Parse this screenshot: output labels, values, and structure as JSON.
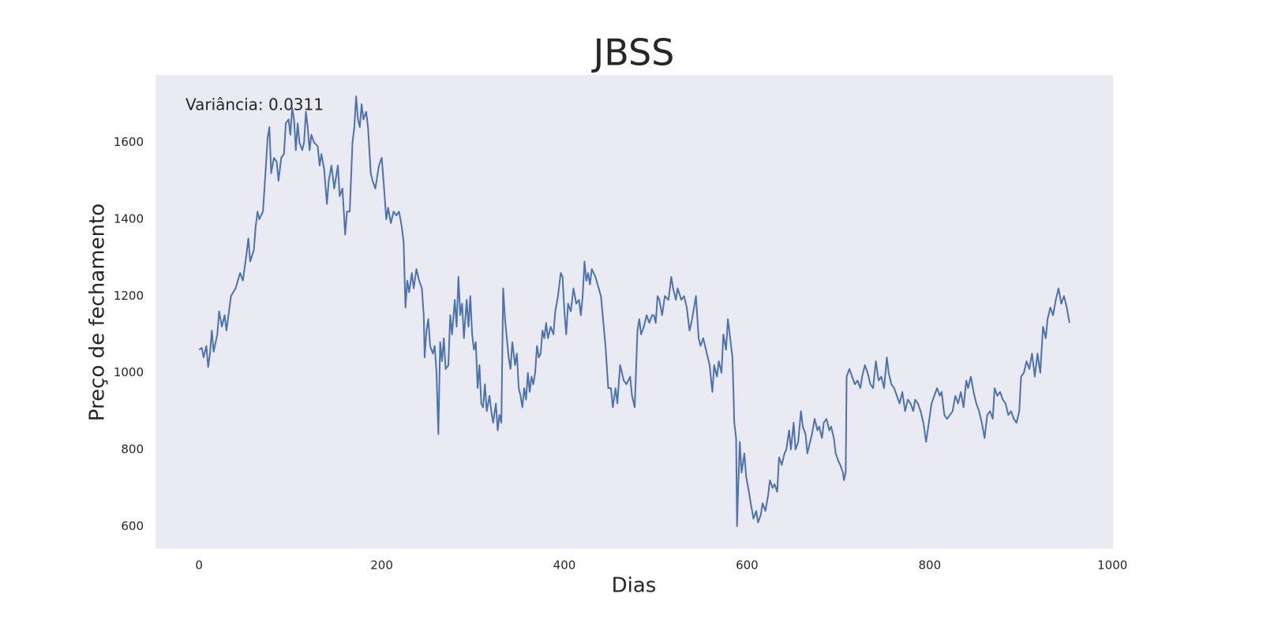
{
  "chart_data": {
    "type": "line",
    "title": "JBSS",
    "x_label": "Dias",
    "y_label": "Preço de fechamento",
    "annotation": "Variância: 0.0311",
    "color": "#4c72b0",
    "grid": false,
    "background": "#eaeaf2",
    "xlim": [
      -47.65,
      1000.65
    ],
    "ylim": [
      541,
      1776
    ],
    "xticks": [
      0,
      200,
      400,
      600,
      800,
      1000
    ],
    "yticks": [
      600,
      800,
      1000,
      1200,
      1400,
      1600
    ],
    "x": [
      0,
      3,
      5,
      8,
      10,
      12,
      14,
      16,
      20,
      22,
      25,
      28,
      30,
      35,
      40,
      45,
      48,
      52,
      54,
      56,
      60,
      62,
      64,
      66,
      70,
      73,
      75,
      77,
      79,
      82,
      85,
      87,
      90,
      93,
      95,
      98,
      100,
      102,
      104,
      106,
      108,
      110,
      113,
      115,
      117,
      119,
      121,
      123,
      126,
      130,
      132,
      134,
      137,
      140,
      142,
      145,
      148,
      150,
      152,
      154,
      157,
      160,
      162,
      165,
      168,
      170,
      172,
      174,
      176,
      178,
      180,
      183,
      185,
      188,
      190,
      193,
      195,
      197,
      200,
      202,
      205,
      207,
      210,
      213,
      216,
      219,
      222,
      224,
      226,
      228,
      230,
      233,
      235,
      238,
      241,
      244,
      246,
      247,
      249,
      251,
      253,
      256,
      258,
      260,
      262,
      264,
      266,
      268,
      270,
      273,
      275,
      277,
      280,
      282,
      284,
      286,
      288,
      290,
      293,
      295,
      297,
      299,
      301,
      303,
      305,
      307,
      309,
      311,
      313,
      315,
      318,
      320,
      322,
      325,
      327,
      329,
      331,
      333,
      335,
      337,
      339,
      341,
      343,
      346,
      348,
      350,
      352,
      354,
      356,
      358,
      360,
      362,
      364,
      366,
      368,
      370,
      372,
      374,
      376,
      378,
      380,
      382,
      385,
      388,
      390,
      393,
      396,
      398,
      400,
      402,
      404,
      407,
      410,
      413,
      416,
      418,
      420,
      422,
      424,
      426,
      428,
      430,
      434,
      440,
      445,
      448,
      451,
      453,
      456,
      458,
      461,
      465,
      468,
      472,
      474,
      477,
      480,
      482,
      484,
      487,
      490,
      493,
      496,
      498,
      500,
      502,
      504,
      507,
      510,
      514,
      517,
      519,
      522,
      524,
      528,
      531,
      534,
      537,
      539,
      542,
      544,
      547,
      549,
      552,
      555,
      559,
      562,
      564,
      567,
      569,
      572,
      574,
      577,
      579,
      582,
      584,
      585,
      586,
      588,
      589,
      590,
      592,
      594,
      597,
      599,
      602,
      604,
      607,
      610,
      612,
      615,
      617,
      620,
      623,
      625,
      628,
      630,
      633,
      635,
      638,
      641,
      643,
      646,
      648,
      651,
      653,
      656,
      659,
      661,
      664,
      666,
      669,
      671,
      674,
      677,
      679,
      682,
      684,
      687,
      690,
      692,
      695,
      697,
      700,
      702,
      705,
      706,
      708,
      709,
      712,
      715,
      718,
      721,
      724,
      726,
      729,
      732,
      735,
      738,
      741,
      744,
      747,
      750,
      753,
      755,
      758,
      761,
      764,
      767,
      770,
      773,
      776,
      779,
      782,
      784,
      787,
      790,
      793,
      796,
      799,
      802,
      805,
      808,
      811,
      813,
      816,
      819,
      822,
      825,
      828,
      831,
      834,
      837,
      840,
      842,
      845,
      848,
      851,
      854,
      857,
      860,
      863,
      866,
      869,
      871,
      874,
      877,
      880,
      883,
      886,
      889,
      892,
      895,
      898,
      900,
      903,
      906,
      909,
      912,
      915,
      918,
      921,
      924,
      927,
      929,
      932,
      935,
      938,
      941,
      944,
      947,
      950,
      953
    ],
    "values": [
      1060,
      1065,
      1040,
      1070,
      1015,
      1050,
      1110,
      1055,
      1100,
      1160,
      1120,
      1150,
      1110,
      1200,
      1220,
      1260,
      1240,
      1310,
      1350,
      1290,
      1320,
      1380,
      1420,
      1400,
      1420,
      1530,
      1610,
      1640,
      1520,
      1560,
      1550,
      1500,
      1560,
      1570,
      1650,
      1660,
      1620,
      1690,
      1660,
      1580,
      1650,
      1600,
      1580,
      1600,
      1680,
      1640,
      1580,
      1620,
      1600,
      1590,
      1540,
      1570,
      1530,
      1440,
      1500,
      1540,
      1480,
      1510,
      1540,
      1460,
      1480,
      1360,
      1420,
      1420,
      1600,
      1640,
      1720,
      1660,
      1640,
      1700,
      1660,
      1680,
      1640,
      1520,
      1500,
      1480,
      1510,
      1540,
      1560,
      1500,
      1400,
      1430,
      1390,
      1420,
      1410,
      1420,
      1380,
      1340,
      1170,
      1240,
      1210,
      1260,
      1220,
      1270,
      1240,
      1220,
      1150,
      1040,
      1110,
      1140,
      1070,
      1050,
      1070,
      1000,
      840,
      1080,
      1030,
      1090,
      1010,
      1020,
      1150,
      1100,
      1190,
      1120,
      1250,
      1150,
      1180,
      1090,
      1190,
      1120,
      1200,
      1100,
      1060,
      1080,
      960,
      1020,
      920,
      910,
      970,
      900,
      940,
      900,
      870,
      920,
      850,
      890,
      870,
      1220,
      1140,
      1090,
      1040,
      1010,
      1080,
      1020,
      1050,
      960,
      940,
      910,
      960,
      930,
      1000,
      950,
      990,
      970,
      1000,
      1070,
      1040,
      1050,
      1110,
      1090,
      1130,
      1090,
      1120,
      1100,
      1160,
      1200,
      1260,
      1250,
      1160,
      1100,
      1180,
      1160,
      1220,
      1180,
      1190,
      1150,
      1200,
      1290,
      1240,
      1260,
      1230,
      1270,
      1250,
      1200,
      1070,
      960,
      960,
      910,
      960,
      920,
      1020,
      980,
      970,
      990,
      940,
      910,
      1110,
      1140,
      1100,
      1120,
      1150,
      1130,
      1150,
      1150,
      1130,
      1200,
      1190,
      1150,
      1200,
      1190,
      1250,
      1220,
      1190,
      1220,
      1190,
      1200,
      1170,
      1110,
      1130,
      1170,
      1200,
      1090,
      1070,
      1090,
      1060,
      1020,
      950,
      1020,
      990,
      1030,
      1000,
      1100,
      1060,
      1140,
      1080,
      1040,
      960,
      870,
      830,
      600,
      680,
      820,
      740,
      790,
      730,
      690,
      660,
      620,
      640,
      610,
      630,
      660,
      640,
      680,
      720,
      700,
      710,
      690,
      780,
      760,
      790,
      800,
      850,
      800,
      870,
      800,
      820,
      900,
      860,
      840,
      790,
      820,
      840,
      880,
      850,
      860,
      830,
      870,
      880,
      850,
      860,
      830,
      790,
      770,
      760,
      740,
      720,
      740,
      990,
      1010,
      990,
      970,
      980,
      960,
      990,
      1020,
      1000,
      970,
      960,
      1030,
      980,
      990,
      960,
      1040,
      1000,
      970,
      960,
      940,
      920,
      950,
      900,
      930,
      920,
      900,
      930,
      920,
      900,
      870,
      820,
      870,
      920,
      940,
      960,
      940,
      950,
      890,
      880,
      890,
      900,
      940,
      920,
      950,
      910,
      980,
      960,
      990,
      950,
      920,
      900,
      870,
      830,
      890,
      900,
      880,
      960,
      940,
      950,
      930,
      920,
      890,
      900,
      880,
      870,
      900,
      990,
      1000,
      1030,
      1010,
      1050,
      990,
      1050,
      1000,
      1120,
      1090,
      1140,
      1170,
      1150,
      1190,
      1220,
      1180,
      1200,
      1170,
      1130
    ]
  }
}
